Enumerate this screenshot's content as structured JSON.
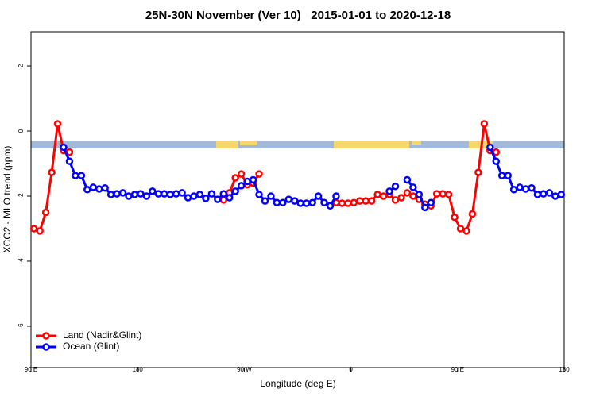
{
  "chart_data": {
    "type": "line",
    "title": "25N-30N November (Ver 10)   2015-01-01 to 2020-12-18",
    "xlabel": "Longitude (deg E)",
    "ylabel": "XCO2 - MLO trend (ppm)",
    "x": [
      92.5,
      97.5,
      102.5,
      107.5,
      112.5,
      117.5,
      122.5,
      127.5,
      132.5,
      137.5,
      142.5,
      147.5,
      152.5,
      157.5,
      162.5,
      167.5,
      172.5,
      177.5,
      182.5,
      187.5,
      192.5,
      197.5,
      202.5,
      207.5,
      212.5,
      217.5,
      222.5,
      227.5,
      232.5,
      237.5,
      242.5,
      247.5,
      252.5,
      257.5,
      262.5,
      267.5,
      272.5,
      277.5,
      282.5,
      287.5,
      292.5,
      297.5,
      302.5,
      307.5,
      312.5,
      317.5,
      322.5,
      327.5,
      332.5,
      337.5,
      342.5,
      347.5,
      352.5,
      357.5,
      362.5,
      367.5,
      372.5,
      377.5,
      382.5,
      387.5,
      392.5,
      397.5,
      402.5,
      407.5,
      412.5,
      417.5,
      422.5,
      427.5,
      432.5,
      437.5,
      442.5,
      447.5,
      452.5,
      457.5,
      462.5,
      467.5,
      472.5,
      477.5,
      482.5,
      487.5,
      492.5,
      497.5,
      502.5,
      507.5,
      512.5,
      517.5,
      522.5,
      527.5,
      532.5,
      537.5
    ],
    "series": [
      {
        "name": "Land (Nadir&Glint)",
        "color": "#ff0000",
        "values": [
          -3.0,
          -3.07,
          -2.5,
          -1.27,
          0.22,
          -0.6,
          -0.65,
          null,
          null,
          null,
          null,
          null,
          null,
          null,
          null,
          null,
          null,
          null,
          null,
          null,
          null,
          null,
          null,
          null,
          null,
          null,
          null,
          null,
          null,
          null,
          null,
          null,
          -2.12,
          -1.9,
          -1.44,
          -1.32,
          -1.65,
          -1.6,
          -1.32,
          null,
          null,
          null,
          null,
          null,
          null,
          null,
          null,
          null,
          null,
          null,
          null,
          -2.2,
          -2.22,
          -2.22,
          -2.2,
          -2.15,
          -2.15,
          -2.15,
          -1.95,
          -2.0,
          -1.95,
          -2.12,
          -2.05,
          -1.9,
          -2.0,
          -2.1,
          -2.25,
          -2.3,
          -1.93,
          -1.93,
          -1.95,
          -2.65,
          -3.0,
          -3.07,
          -2.55,
          -1.27,
          0.22,
          -0.6,
          -0.65,
          null,
          null,
          null,
          null,
          null,
          null,
          null,
          null,
          null,
          null,
          null
        ]
      },
      {
        "name": "Ocean (Glint)",
        "color": "#0000ff",
        "values": [
          null,
          null,
          null,
          null,
          null,
          -0.5,
          -0.93,
          -1.37,
          -1.37,
          -1.8,
          -1.73,
          -1.78,
          -1.75,
          -1.95,
          -1.93,
          -1.9,
          -2.0,
          -1.95,
          -1.93,
          -2.0,
          -1.85,
          -1.93,
          -1.93,
          -1.95,
          -1.93,
          -1.9,
          -2.05,
          -2.0,
          -1.95,
          -2.07,
          -1.93,
          -2.1,
          -1.93,
          -2.05,
          -1.85,
          -1.68,
          -1.55,
          -1.5,
          -1.95,
          -2.15,
          -2.0,
          -2.2,
          -2.2,
          -2.1,
          -2.15,
          -2.22,
          -2.22,
          -2.2,
          -2.0,
          -2.2,
          -2.3,
          -2.0,
          null,
          null,
          null,
          null,
          null,
          null,
          null,
          null,
          -1.85,
          -1.7,
          null,
          -1.5,
          -1.73,
          -1.95,
          -2.35,
          -2.2,
          null,
          null,
          null,
          null,
          null,
          null,
          null,
          null,
          null,
          -0.5,
          -0.93,
          -1.37,
          -1.37,
          -1.8,
          -1.73,
          -1.78,
          -1.75,
          -1.95,
          -1.93,
          -1.9,
          -2.0,
          -1.95
        ]
      }
    ],
    "xlim": [
      90,
      540
    ],
    "xticks": [
      {
        "value": 90,
        "label": "90 E"
      },
      180,
      {
        "value": 270,
        "label": "90 W"
      },
      {
        "value": 360,
        "label": "0"
      },
      {
        "value": 450,
        "label": "90 E"
      },
      {
        "value": 540,
        "label": "180"
      }
    ],
    "ylim": [
      -7.27,
      3.05
    ],
    "yticks": [
      -6,
      -4,
      -2,
      0,
      2
    ],
    "legend": "bottom-left"
  }
}
